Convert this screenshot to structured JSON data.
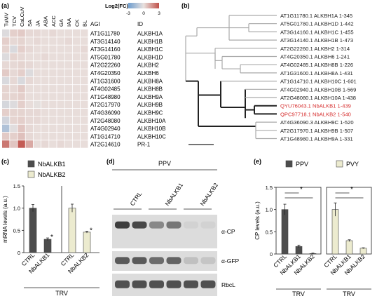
{
  "panel_a": {
    "label": "(a)",
    "conditions": [
      "TuMV",
      "TCV",
      "CaLCuV",
      "SA",
      "JA",
      "ABA",
      "ACC",
      "GA",
      "IAA",
      "CK",
      "BL"
    ],
    "legend_title": "Log2(FC)",
    "legend_ticks": [
      "-3",
      "0",
      "3"
    ],
    "col_agi": "AGI",
    "col_id": "ID",
    "colors": {
      "neg": "#6f9ecf",
      "pos": "#c0514a",
      "neutral": "#e9e2df"
    },
    "rows": [
      {
        "agi": "AT1G11780",
        "id": "ALKBH1A",
        "values": [
          -0.3,
          0.4,
          0.5,
          0.2,
          0.2,
          0.1,
          0.2,
          0.1,
          0.1,
          0.1,
          0.1
        ]
      },
      {
        "agi": "AT3G14140",
        "id": "ALKBH1B",
        "values": [
          0.4,
          0.2,
          0.3,
          0.1,
          0.2,
          0.1,
          0.1,
          0.1,
          0.2,
          0.1,
          0.1
        ]
      },
      {
        "agi": "AT3G14160",
        "id": "ALKBH1C",
        "values": [
          0.3,
          -0.4,
          0.4,
          0.2,
          0.1,
          0.1,
          0.1,
          0.1,
          0.1,
          0.1,
          0.2
        ]
      },
      {
        "agi": "AT5G01780",
        "id": "ALKBH1D",
        "values": [
          -0.3,
          0.3,
          0.2,
          0.1,
          0.1,
          0.2,
          0.1,
          0.1,
          0.1,
          0.1,
          0.1
        ]
      },
      {
        "agi": "AT2G22260",
        "id": "ALKBH2",
        "values": [
          0.2,
          0.2,
          0.3,
          0.2,
          0.1,
          0.1,
          0.1,
          0.1,
          0.1,
          0.1,
          0.1
        ]
      },
      {
        "agi": "AT4G20350",
        "id": "ALKBH6",
        "values": [
          0.5,
          0.2,
          0.4,
          -0.3,
          0.1,
          0.1,
          0.1,
          0.1,
          0.1,
          0.1,
          0.1
        ]
      },
      {
        "agi": "AT1G31600",
        "id": "ALKBH8A",
        "values": [
          -0.4,
          0.2,
          -0.4,
          0.2,
          0.1,
          0.1,
          0.1,
          0.1,
          0.1,
          0.1,
          0.1
        ]
      },
      {
        "agi": "AT4G02485",
        "id": "ALKBH8B",
        "values": [
          0.3,
          0.2,
          0.5,
          0.1,
          0.1,
          0.1,
          0.1,
          0.1,
          0.1,
          0.1,
          0.1
        ]
      },
      {
        "agi": "AT1G48980",
        "id": "ALKBH9A",
        "values": [
          0.3,
          0.3,
          0.4,
          0.1,
          0.1,
          0.1,
          0.1,
          0.1,
          0.1,
          0.1,
          0.1
        ]
      },
      {
        "agi": "AT2G17970",
        "id": "ALKBH9B",
        "values": [
          -0.5,
          -0.3,
          0.4,
          0.1,
          -0.1,
          0.1,
          0.1,
          0.1,
          0.1,
          0.1,
          0.1
        ]
      },
      {
        "agi": "AT4G36090",
        "id": "ALKBH9C",
        "values": [
          0.4,
          0.3,
          0.3,
          0.2,
          0.2,
          0.1,
          0.1,
          0.1,
          0.1,
          0.1,
          0.1
        ]
      },
      {
        "agi": "AT2G48080",
        "id": "ALKBH10A",
        "values": [
          -0.6,
          0.3,
          0.4,
          0.2,
          0.2,
          0.1,
          0.1,
          0.1,
          0.1,
          0.1,
          0.1
        ]
      },
      {
        "agi": "AT4G02940",
        "id": "ALKBH10B",
        "values": [
          -1.4,
          -0.2,
          0.6,
          0.2,
          0.1,
          0.1,
          0.1,
          0.1,
          0.1,
          0.1,
          0.1
        ]
      },
      {
        "agi": "AT1G14710",
        "id": "ALKBH10C",
        "values": [
          0.5,
          0.4,
          0.7,
          0.2,
          0.1,
          0.1,
          0.1,
          0.1,
          0.1,
          0.1,
          0.1
        ]
      },
      {
        "agi": "AT2G14610",
        "id": "PR-1",
        "values": [
          2.2,
          0.6,
          2.8,
          1.2,
          0.1,
          0.2,
          0.1,
          0.2,
          0.1,
          0.1,
          0.1
        ]
      }
    ]
  },
  "panel_b": {
    "label": "(b)",
    "highlight_color": "#d62c2c",
    "leaves": [
      {
        "text": "AT1G11780.1 ALKBH1A 1-345",
        "highlight": false
      },
      {
        "text": "AT5G01780.1 ALKBH1D 1-442",
        "highlight": false
      },
      {
        "text": "AT3G14160.1 ALKBH1C 1-455",
        "highlight": false
      },
      {
        "text": "AT3G14140.1 ALKBH1B 1-473",
        "highlight": false
      },
      {
        "text": "AT2G22260.1 ALKBH2 1-314",
        "highlight": false
      },
      {
        "text": "AT4G20350.1 ALKBH6 1-241",
        "highlight": false
      },
      {
        "text": "AT4G02485.1 ALKBH8B 1-226",
        "highlight": false
      },
      {
        "text": "AT1G31600.1 ALKBH8A 1-431",
        "highlight": false
      },
      {
        "text": "AT1G14710.1 ALKBH10C 1-601",
        "highlight": false
      },
      {
        "text": "AT4G02940.1 ALKBH10B 1-569",
        "highlight": false
      },
      {
        "text": "AT2G48080.1 ALKBH10A 1-438",
        "highlight": false
      },
      {
        "text": "QYU76043.1 NbALKB1 1-439",
        "highlight": true
      },
      {
        "text": "QPC97718.1 NbALKB2 1-540",
        "highlight": true
      },
      {
        "text": "AT4G36090.3 ALKBH9C 1-520",
        "highlight": false
      },
      {
        "text": "AT2G17970.1 ALKBH9B 1-507",
        "highlight": false
      },
      {
        "text": "AT1G48980.1 ALKBH9A 1-331",
        "highlight": false
      }
    ]
  },
  "panel_c": {
    "label": "(c)",
    "legend": [
      {
        "name": "NbALKB1",
        "color": "#4d4d4d"
      },
      {
        "name": "NbALKB2",
        "color": "#ecebcf"
      }
    ],
    "ylabel": "mRNA levels (a.u.)",
    "yticks": [
      "0",
      "0.5",
      "1.0",
      "1.5"
    ],
    "ymax": 1.5,
    "bars": [
      {
        "label": "CTRL",
        "value": 1.0,
        "err": 0.08,
        "series": 0,
        "star": false
      },
      {
        "label": "NbALKB1",
        "value": 0.3,
        "err": 0.03,
        "series": 0,
        "star": true
      },
      {
        "label": "CTRL",
        "value": 1.0,
        "err": 0.09,
        "series": 1,
        "star": false
      },
      {
        "label": "NbALKB2",
        "value": 0.46,
        "err": 0.02,
        "series": 1,
        "star": true
      }
    ],
    "star": "*",
    "group_label": "TRV"
  },
  "panel_d": {
    "label": "(d)",
    "virus": "PPV",
    "lanes": [
      "CTRL",
      "NbALKB1",
      "NbALKB2"
    ],
    "blots": [
      "α-CP",
      "α-GFP",
      "RbcL"
    ]
  },
  "panel_e": {
    "label": "(e)",
    "ylabel": "CP levels (a.u.)",
    "yticks": [
      "0",
      "0.5",
      "1.0",
      "1.5"
    ],
    "ymax": 1.5,
    "star": "*",
    "groups": [
      {
        "virus": "PPV",
        "color": "#4d4d4d",
        "bottom": "TRV",
        "bars": [
          {
            "label": "CTRL",
            "value": 1.0,
            "err": 0.12
          },
          {
            "label": "NbALKB1",
            "value": 0.17,
            "err": 0.03
          },
          {
            "label": "NbALKB2",
            "value": 0.01,
            "err": 0.01
          }
        ]
      },
      {
        "virus": "PVY",
        "color": "#ecebcf",
        "bottom": "TRV",
        "bars": [
          {
            "label": "CTRL",
            "value": 1.0,
            "err": 0.15
          },
          {
            "label": "NbALKB1",
            "value": 0.3,
            "err": 0.02
          },
          {
            "label": "NbALKB2",
            "value": 0.13,
            "err": 0.01
          }
        ]
      }
    ]
  }
}
